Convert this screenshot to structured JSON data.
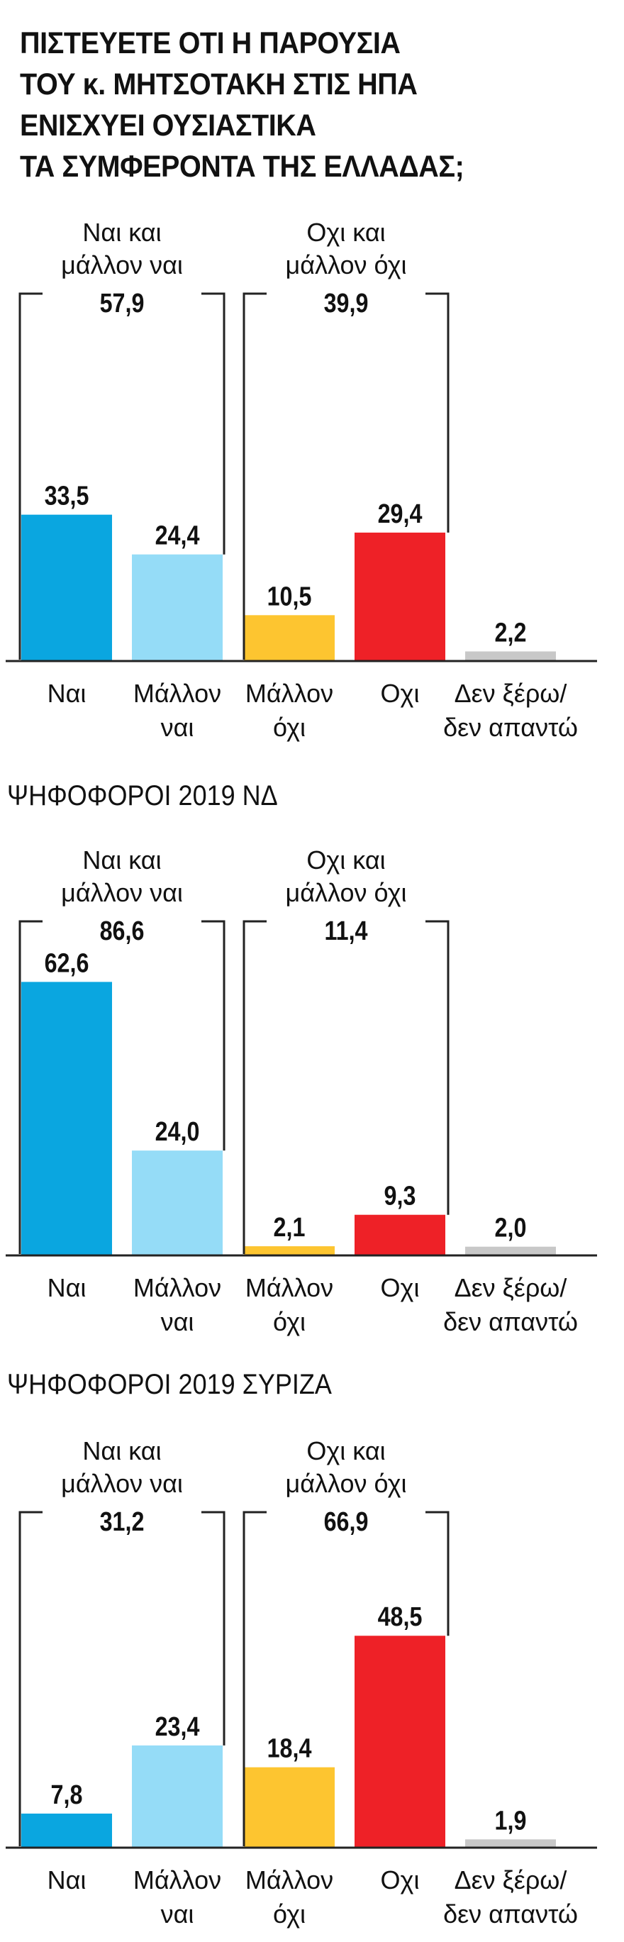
{
  "title_lines": [
    "ΠΙΣΤΕΥΕΤΕ ΟΤΙ Η ΠΑΡΟΥΣΙΑ",
    "ΤΟΥ κ. ΜΗΤΣΟΤΑΚΗ ΣΤΙΣ ΗΠΑ",
    "ΕΝΙΣΧΥΕΙ ΟΥΣΙΑΣΤΙΚΑ",
    "ΤΑ ΣΥΜΦΕΡΟΝΤΑ ΤΗΣ ΕΛΛΑΔΑΣ;"
  ],
  "colors": {
    "yes": "#0aa6e0",
    "rather_yes": "#95dcf7",
    "rather_no": "#fdc530",
    "no": "#ee2127",
    "dont_know": "#c8c8c8",
    "axis": "#222222",
    "text": "#111111"
  },
  "chart_data": [
    {
      "type": "bar",
      "title": "",
      "categories": [
        [
          "Ναι"
        ],
        [
          "Μάλλον",
          "ναι"
        ],
        [
          "Μάλλον",
          "όχι"
        ],
        [
          "Οχι"
        ],
        [
          "Δεν ξέρω/",
          "δεν απαντώ"
        ]
      ],
      "values": [
        33.5,
        24.4,
        10.5,
        29.4,
        2.2
      ],
      "value_labels": [
        "33,5",
        "24,4",
        "10,5",
        "29,4",
        "2,2"
      ],
      "groups": [
        {
          "label_lines": [
            "Ναι και",
            "μάλλον ναι"
          ],
          "total_label": "57,9",
          "total": 57.9
        },
        {
          "label_lines": [
            "Οχι και",
            "μάλλον όχι"
          ],
          "total_label": "39,9",
          "total": 39.9
        }
      ],
      "ylim": [
        0,
        100
      ],
      "grid": false
    },
    {
      "type": "bar",
      "title": "ΨΗΦΟΦΟΡΟΙ 2019 ΝΔ",
      "categories": [
        [
          "Ναι"
        ],
        [
          "Μάλλον",
          "ναι"
        ],
        [
          "Μάλλον",
          "όχι"
        ],
        [
          "Οχι"
        ],
        [
          "Δεν ξέρω/",
          "δεν απαντώ"
        ]
      ],
      "values": [
        62.6,
        24.0,
        2.1,
        9.3,
        2.0
      ],
      "value_labels": [
        "62,6",
        "24,0",
        "2,1",
        "9,3",
        "2,0"
      ],
      "groups": [
        {
          "label_lines": [
            "Ναι και",
            "μάλλον ναι"
          ],
          "total_label": "86,6",
          "total": 86.6
        },
        {
          "label_lines": [
            "Οχι και",
            "μάλλον όχι"
          ],
          "total_label": "11,4",
          "total": 11.4
        }
      ],
      "ylim": [
        0,
        100
      ],
      "grid": false
    },
    {
      "type": "bar",
      "title": "ΨΗΦΟΦΟΡΟΙ 2019 ΣΥΡΙΖΑ",
      "categories": [
        [
          "Ναι"
        ],
        [
          "Μάλλον",
          "ναι"
        ],
        [
          "Μάλλον",
          "όχι"
        ],
        [
          "Οχι"
        ],
        [
          "Δεν ξέρω/",
          "δεν απαντώ"
        ]
      ],
      "values": [
        7.8,
        23.4,
        18.4,
        48.5,
        1.9
      ],
      "value_labels": [
        "7,8",
        "23,4",
        "18,4",
        "48,5",
        "1,9"
      ],
      "groups": [
        {
          "label_lines": [
            "Ναι και",
            "μάλλον ναι"
          ],
          "total_label": "31,2",
          "total": 31.2
        },
        {
          "label_lines": [
            "Οχι και",
            "μάλλον όχι"
          ],
          "total_label": "66,9",
          "total": 66.9
        }
      ],
      "ylim": [
        0,
        100
      ],
      "grid": false
    }
  ]
}
